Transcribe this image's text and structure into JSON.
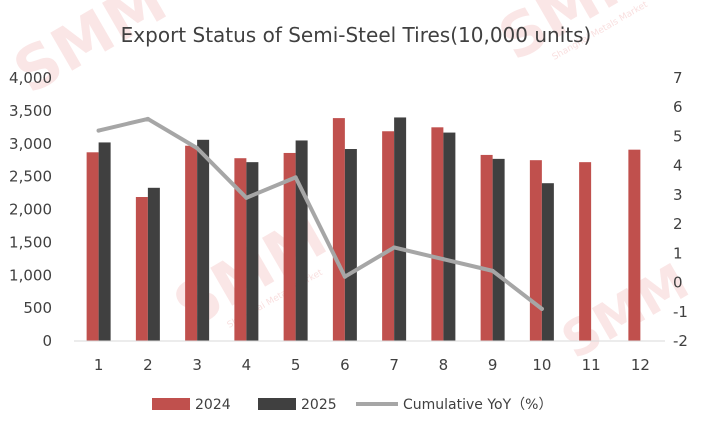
{
  "watermark": {
    "logo": "SMM",
    "subtext": "Shanghai Metals Market"
  },
  "chart_data": {
    "type": "bar",
    "title": "Export Status of Semi-Steel Tires(10,000 units)",
    "categories": [
      "1",
      "2",
      "3",
      "4",
      "5",
      "6",
      "7",
      "8",
      "9",
      "10",
      "11",
      "12"
    ],
    "series": [
      {
        "name": "2024",
        "type": "bar",
        "axis": "left",
        "color": "#c0504d",
        "values": [
          2870,
          2190,
          2970,
          2780,
          2860,
          3390,
          3190,
          3250,
          2830,
          2750,
          2720,
          2910
        ]
      },
      {
        "name": "2025",
        "type": "bar",
        "axis": "left",
        "color": "#404040",
        "values": [
          3020,
          2330,
          3060,
          2720,
          3050,
          2920,
          3400,
          3170,
          2770,
          2400,
          null,
          null
        ]
      },
      {
        "name": "Cumulative YoY（%）",
        "type": "line",
        "axis": "right",
        "color": "#a6a6a6",
        "values": [
          5.2,
          5.6,
          4.6,
          2.9,
          3.6,
          0.2,
          1.2,
          0.8,
          0.4,
          -0.9,
          null,
          null
        ]
      }
    ],
    "y_left": {
      "min": 0,
      "max": 4000,
      "step": 500,
      "ticks": [
        "0",
        "500",
        "1,000",
        "1,500",
        "2,000",
        "2,500",
        "3,000",
        "3,500",
        "4,000"
      ]
    },
    "y_right": {
      "min": -2,
      "max": 7,
      "step": 1,
      "ticks": [
        "-2",
        "-1",
        "0",
        "1",
        "2",
        "3",
        "4",
        "5",
        "6",
        "7"
      ]
    },
    "grid": false,
    "legend": "bottom"
  }
}
